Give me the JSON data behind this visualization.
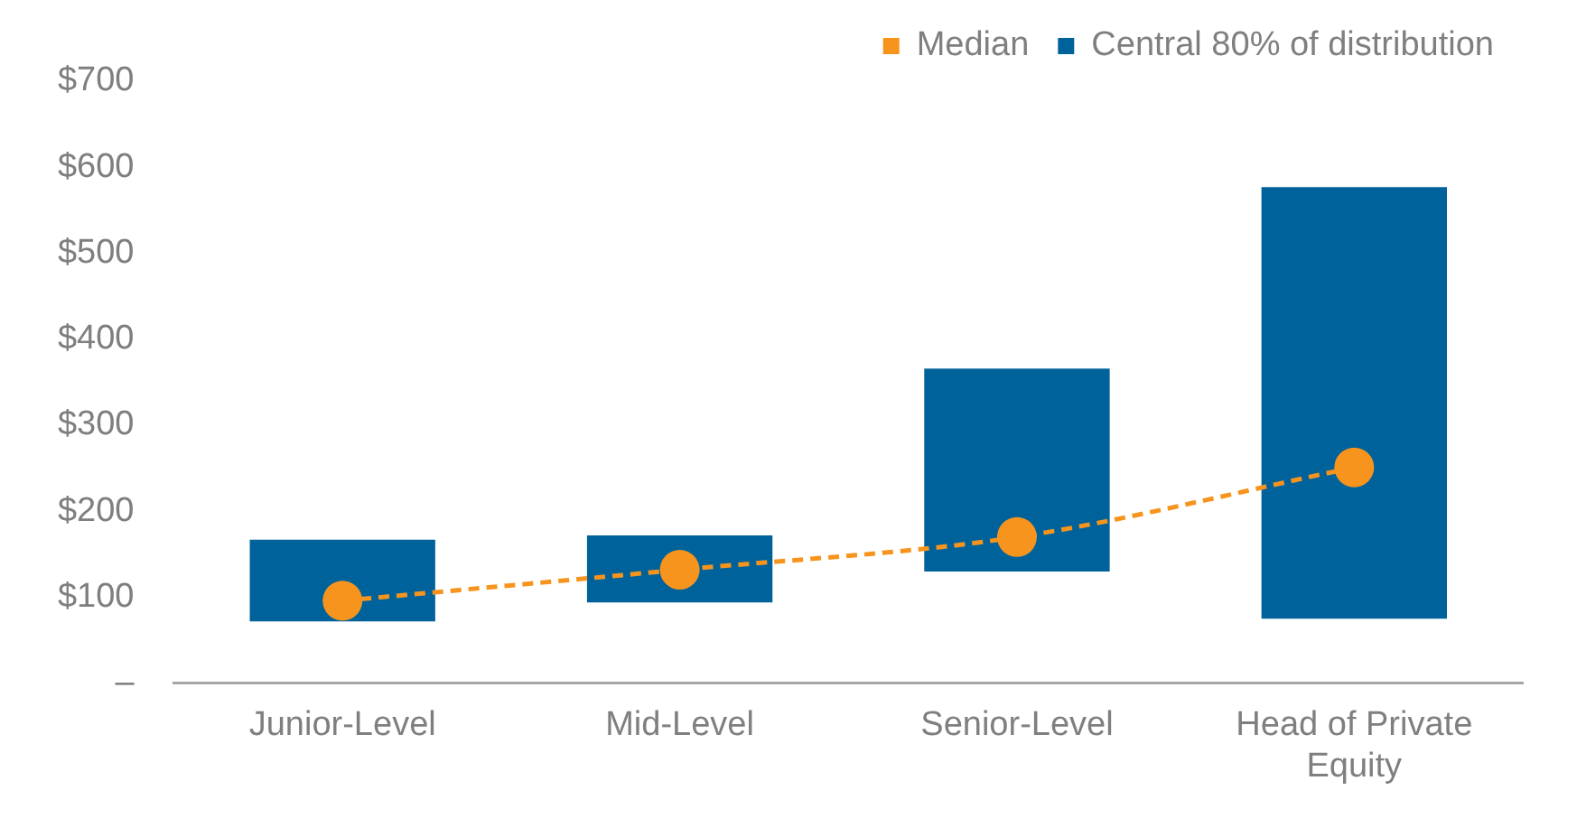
{
  "chart_data": {
    "type": "bar",
    "categories": [
      "Junior-Level",
      "Mid-Level",
      "Senior-Level",
      "Head of Private Equity"
    ],
    "series": [
      {
        "name": "Median",
        "type": "line",
        "color": "#f7941d",
        "values": [
          96,
          132,
          170,
          251
        ],
        "marker": "circle",
        "line_style": "dashed"
      },
      {
        "name": "Central 80% of distribution",
        "color": "#00629b",
        "base": [
          72,
          94,
          130,
          75
        ],
        "values": [
          95,
          78,
          236,
          502
        ]
      }
    ],
    "ylim": [
      0,
      700
    ],
    "yticks": [
      {
        "value": 0,
        "label": "–"
      },
      {
        "value": 100,
        "label": "$100"
      },
      {
        "value": 200,
        "label": "$200"
      },
      {
        "value": 300,
        "label": "$300"
      },
      {
        "value": 400,
        "label": "$400"
      },
      {
        "value": 500,
        "label": "$500"
      },
      {
        "value": 600,
        "label": "$600"
      },
      {
        "value": 700,
        "label": "$700"
      }
    ],
    "grid": false,
    "legend": "top right"
  }
}
